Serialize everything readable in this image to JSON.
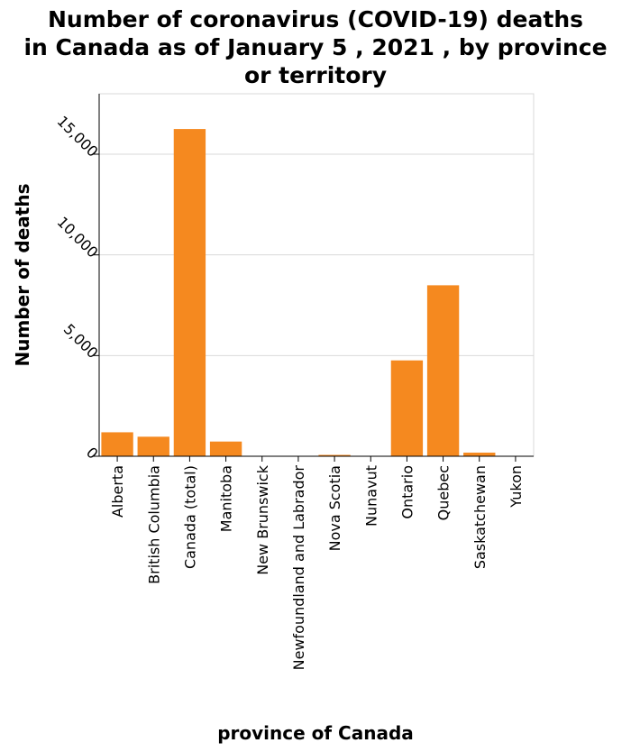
{
  "chart_data": {
    "type": "bar",
    "title_lines": [
      "Number of coronavirus (COVID-19) deaths",
      "in Canada as of January 5 , 2021 , by province",
      "or territory"
    ],
    "xlabel": "province of Canada",
    "ylabel": "Number of deaths",
    "categories": [
      "Alberta",
      "British Columbia",
      "Canada  (total)",
      "Manitoba",
      "New Brunswick",
      "Newfoundland and Labrador",
      "Nova Scotia",
      "Nunavut",
      "Ontario",
      "Quebec",
      "Saskatchewan",
      "Yukon"
    ],
    "values": [
      1190,
      970,
      16250,
      730,
      9,
      4,
      67,
      0,
      4760,
      8490,
      180,
      1
    ],
    "y_ticks": [
      0,
      5000,
      10000,
      15000
    ],
    "y_tick_labels": [
      "0",
      "5,000",
      "10,000",
      "15,000"
    ],
    "ylim": [
      0,
      18000
    ],
    "grid": true,
    "bar_color": "#f5891f",
    "grid_color": "#d9d9d9",
    "axis_color": "#000000"
  }
}
